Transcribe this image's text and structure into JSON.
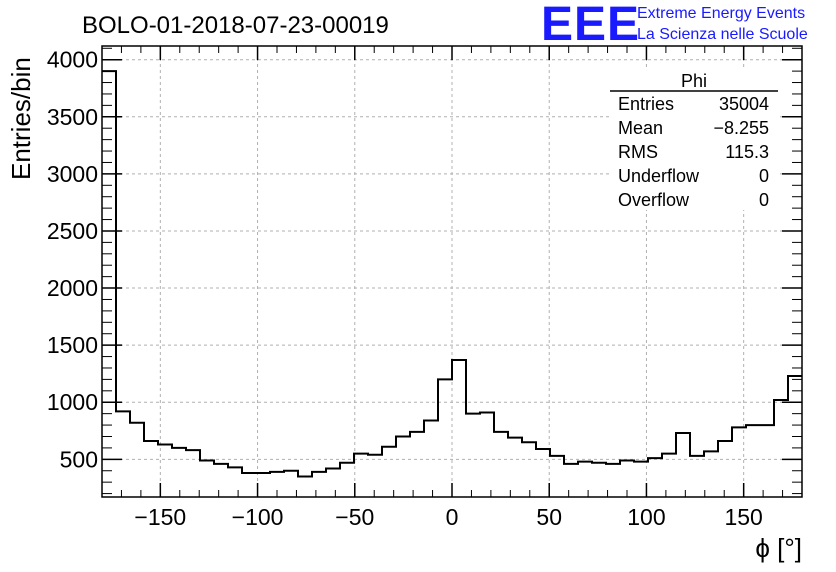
{
  "header": {
    "title": "BOLO-01-2018-07-23-00019",
    "logo_text": "EEE",
    "logo_line1": "Extreme Energy Events",
    "logo_line2": "La Scienza nelle Scuole"
  },
  "stats": {
    "title": "Phi",
    "rows": [
      {
        "label": "Entries",
        "value": "35004"
      },
      {
        "label": "Mean",
        "value": "−8.255"
      },
      {
        "label": "RMS",
        "value": "115.3"
      },
      {
        "label": "Underflow",
        "value": "0"
      },
      {
        "label": "Overflow",
        "value": "0"
      }
    ]
  },
  "chart_data": {
    "type": "bar",
    "xlabel": "ϕ [°]",
    "ylabel": "Entries/bin",
    "xlim": [
      -180,
      180
    ],
    "ylim": [
      170,
      4120
    ],
    "grid": true,
    "bin_width": 7.2,
    "x_ticks": [
      -150,
      -100,
      -50,
      0,
      50,
      100,
      150
    ],
    "x_tick_labels": [
      "−150",
      "−100",
      "−50",
      "0",
      "50",
      "100",
      "150"
    ],
    "y_ticks": [
      500,
      1000,
      1500,
      2000,
      2500,
      3000,
      3500,
      4000
    ],
    "y_tick_labels": [
      "500",
      "1000",
      "1500",
      "2000",
      "2500",
      "3000",
      "3500",
      "4000"
    ],
    "bin_edges_start": -180,
    "values": [
      3900,
      920,
      820,
      660,
      630,
      600,
      580,
      490,
      460,
      430,
      380,
      380,
      390,
      400,
      350,
      390,
      420,
      470,
      550,
      540,
      610,
      700,
      740,
      840,
      1200,
      1370,
      900,
      910,
      740,
      690,
      650,
      590,
      530,
      460,
      480,
      470,
      460,
      490,
      480,
      510,
      550,
      730,
      530,
      570,
      660,
      780,
      800,
      800,
      1020,
      1230
    ]
  }
}
